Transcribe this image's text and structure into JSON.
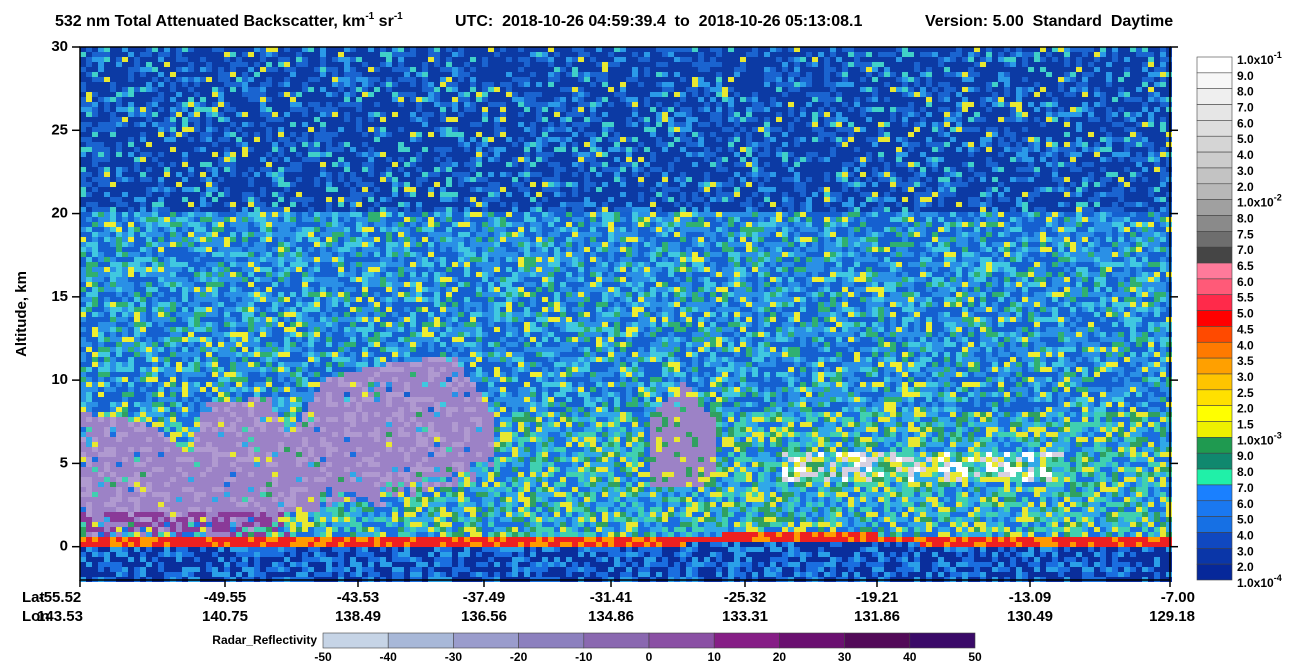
{
  "chart_data": {
    "type": "curtain",
    "title_parts": [
      "532 nm Total Attenuated Backscatter, km",
      "-1",
      " sr",
      "-1"
    ],
    "time_range": "UTC:  2018-10-26 04:59:39.4  to  2018-10-26 05:13:08.1",
    "version": "Version: 5.00  Standard  Daytime",
    "ylabel": "Altitude, km",
    "ylim": [
      -2,
      30
    ],
    "yticks": [
      0,
      5,
      10,
      15,
      20,
      25,
      30
    ],
    "x_row_labels": [
      "Lat",
      "Lon"
    ],
    "x_ticks": [
      {
        "lat": "-55.52",
        "lon": "143.53"
      },
      {
        "lat": "-49.55",
        "lon": "140.75"
      },
      {
        "lat": "-43.53",
        "lon": "138.49"
      },
      {
        "lat": "-37.49",
        "lon": "136.56"
      },
      {
        "lat": "-31.41",
        "lon": "134.86"
      },
      {
        "lat": "-25.32",
        "lon": "133.31"
      },
      {
        "lat": "-19.21",
        "lon": "131.86"
      },
      {
        "lat": "-13.09",
        "lon": "130.49"
      },
      {
        "lat": "-7.00",
        "lon": "129.18"
      }
    ],
    "backscatter_colorbar": {
      "labels": [
        {
          "text": "1.0x10",
          "sup": "-1"
        },
        {
          "text": "9.0"
        },
        {
          "text": "8.0"
        },
        {
          "text": "7.0"
        },
        {
          "text": "6.0"
        },
        {
          "text": "5.0"
        },
        {
          "text": "4.0"
        },
        {
          "text": "3.0"
        },
        {
          "text": "2.0"
        },
        {
          "text": "1.0x10",
          "sup": "-2"
        },
        {
          "text": "8.0"
        },
        {
          "text": "7.5"
        },
        {
          "text": "7.0"
        },
        {
          "text": "6.5"
        },
        {
          "text": "6.0"
        },
        {
          "text": "5.5"
        },
        {
          "text": "5.0"
        },
        {
          "text": "4.5"
        },
        {
          "text": "4.0"
        },
        {
          "text": "3.5"
        },
        {
          "text": "3.0"
        },
        {
          "text": "2.5"
        },
        {
          "text": "2.0"
        },
        {
          "text": "1.5"
        },
        {
          "text": "1.0x10",
          "sup": "-3"
        },
        {
          "text": "9.0"
        },
        {
          "text": "8.0"
        },
        {
          "text": "7.0"
        },
        {
          "text": "6.0"
        },
        {
          "text": "5.0"
        },
        {
          "text": "4.0"
        },
        {
          "text": "3.0"
        },
        {
          "text": "2.0"
        },
        {
          "text": "1.0x10",
          "sup": "-4"
        }
      ],
      "colors": [
        "#ffffff",
        "#f7f7f7",
        "#efefef",
        "#e6e6e6",
        "#dedede",
        "#d5d5d5",
        "#cccccc",
        "#c3c3c3",
        "#b8b8b8",
        "#a0a0a0",
        "#8a8a8a",
        "#6e6e6e",
        "#454545",
        "#ff7a9a",
        "#ff5a78",
        "#ff2a4a",
        "#ff0000",
        "#ff4a00",
        "#ff7a00",
        "#ffa000",
        "#ffc400",
        "#ffe000",
        "#ffff00",
        "#eef000",
        "#1f9a50",
        "#10886e",
        "#20f0a8",
        "#1a80ff",
        "#1a78f0",
        "#1670e4",
        "#1048c0",
        "#0a36a8",
        "#06289a"
      ]
    },
    "radar_colorbar": {
      "label": "Radar_Reflectivity",
      "ticks": [
        -50,
        -40,
        -30,
        -20,
        -10,
        0,
        10,
        20,
        30,
        40,
        50
      ],
      "colors": [
        "#c6d4e6",
        "#a8b8d8",
        "#9a9ccc",
        "#8c80be",
        "#8a68b0",
        "#8a50a4",
        "#861e86",
        "#6a1070",
        "#520a58",
        "#3a0a68"
      ]
    }
  }
}
